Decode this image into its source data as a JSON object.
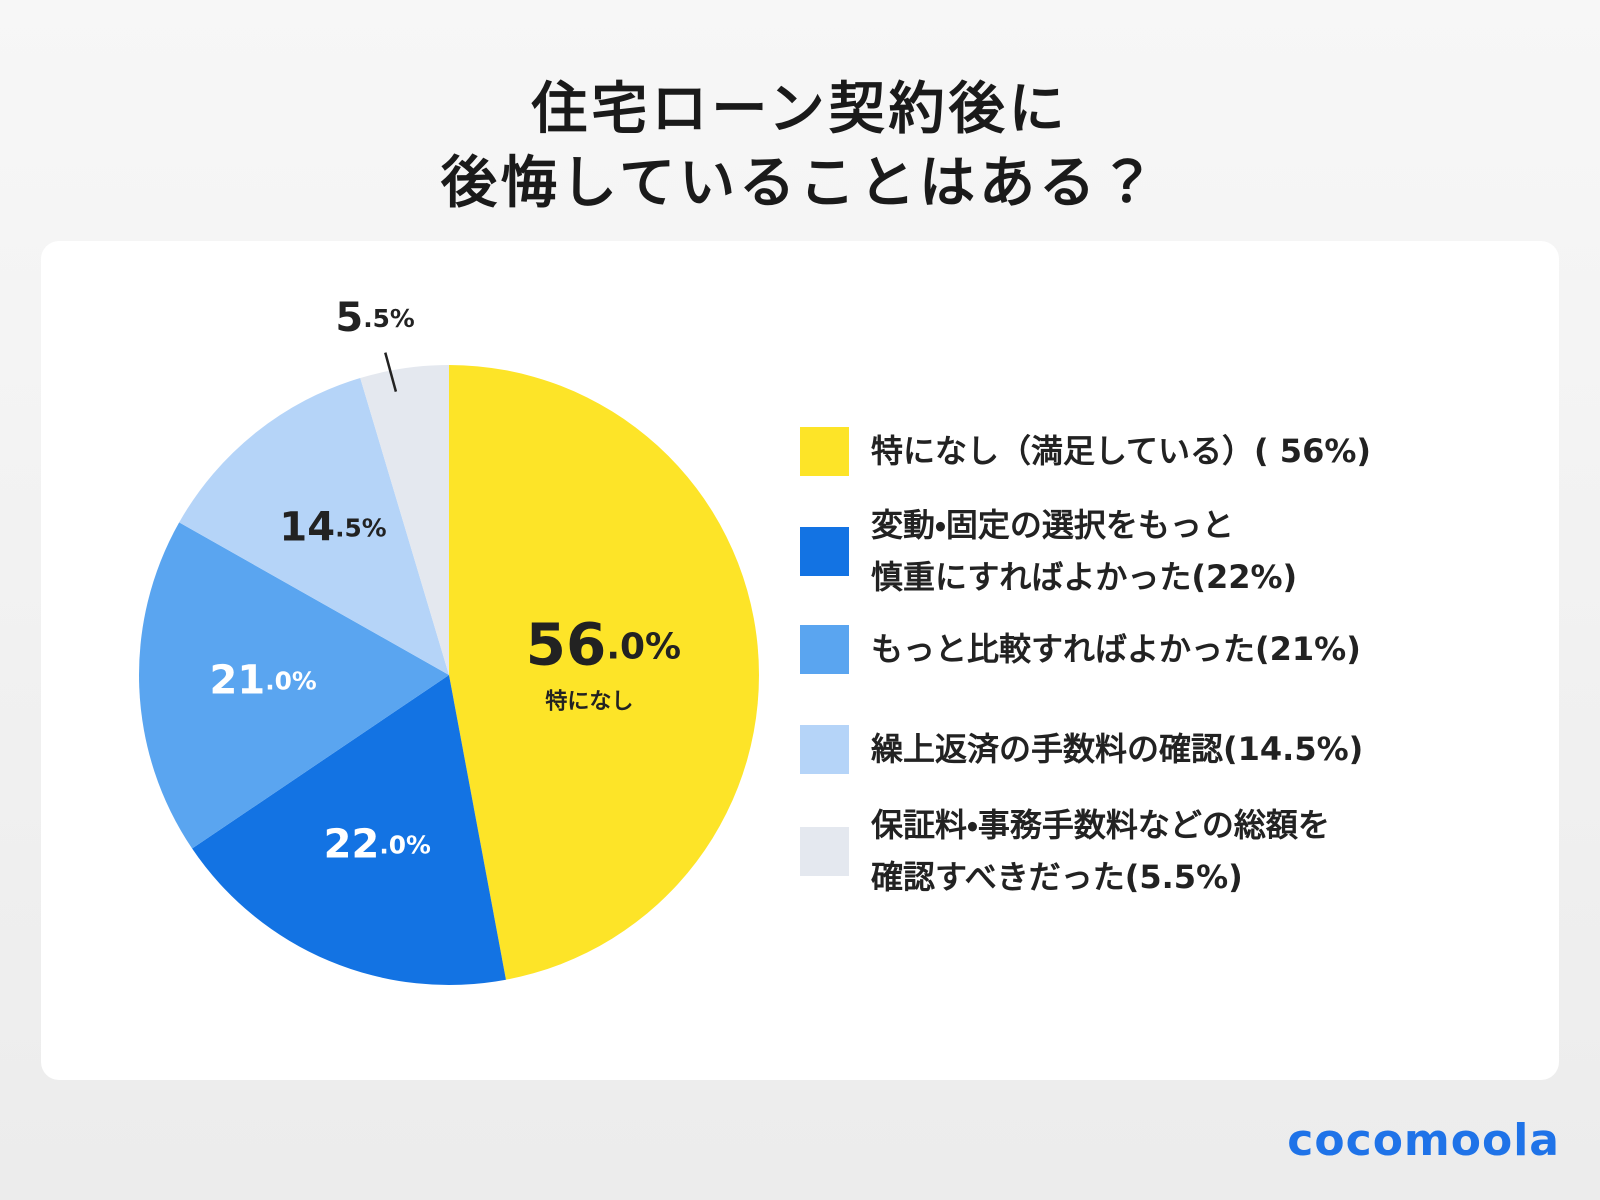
{
  "chart_data": {
    "type": "pie",
    "title": [
      "住宅ローン契約後に",
      "後悔していることはある？"
    ],
    "categories": [
      "特になし（満足している）( 56%)",
      "変動・固定の選択をもっと\n慎重にすればよかった(22%)",
      "もっと比較すればよかった(21%)",
      "繰上返済の手数料の確認(14.5%)",
      "保証料・事務手数料などの総額を\n確認すべきだった(5.5%)"
    ],
    "values": [
      56,
      22,
      21,
      14.5,
      5.5
    ],
    "value_labels": [
      "56.0%",
      "22.0%",
      "21.0%",
      "14.5%",
      "5.5%"
    ],
    "colors": [
      "#fde428",
      "#1373e3",
      "#5aa5f0",
      "#b5d4f8",
      "#e4e8ef"
    ],
    "label_colors": [
      "#222222",
      "#ffffff",
      "#ffffff",
      "#222222",
      "#222222"
    ],
    "annotation": "特になし",
    "legend": "right"
  },
  "brand": "cocomoola"
}
